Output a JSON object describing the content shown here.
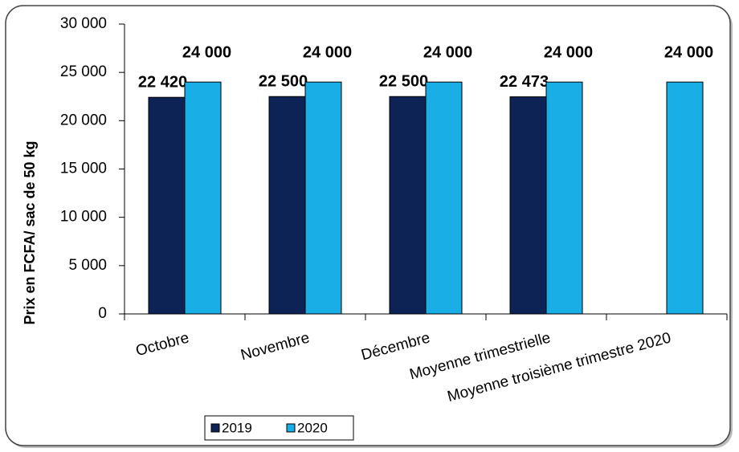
{
  "chart_data": {
    "type": "bar",
    "y_label": "Prix en FCFA/ sac de 50 kg",
    "categories": [
      "Octobre",
      "Novembre",
      "Décembre",
      "Moyenne trimestrielle",
      "Moyenne troisième trimestre 2020"
    ],
    "series": [
      {
        "name": "2019",
        "color": "#0d2356",
        "values": [
          22420,
          22500,
          22500,
          22473,
          null
        ],
        "value_labels": [
          "22 420",
          "22 500",
          "22 500",
          "22 473",
          null
        ]
      },
      {
        "name": "2020",
        "color": "#1aaee6",
        "values": [
          24000,
          24000,
          24000,
          24000,
          24000
        ],
        "value_labels": [
          "24 000",
          "24 000",
          "24 000",
          "24 000",
          "24 000"
        ]
      }
    ],
    "ylim": [
      0,
      30000
    ],
    "yticks": [
      {
        "value": 0,
        "label": "0"
      },
      {
        "value": 5000,
        "label": "5 000"
      },
      {
        "value": 10000,
        "label": "10 000"
      },
      {
        "value": 15000,
        "label": "15 000"
      },
      {
        "value": 20000,
        "label": "20 000"
      },
      {
        "value": 25000,
        "label": "25 000"
      },
      {
        "value": 30000,
        "label": "30 000"
      }
    ],
    "grid": false,
    "legend": "bottom"
  }
}
